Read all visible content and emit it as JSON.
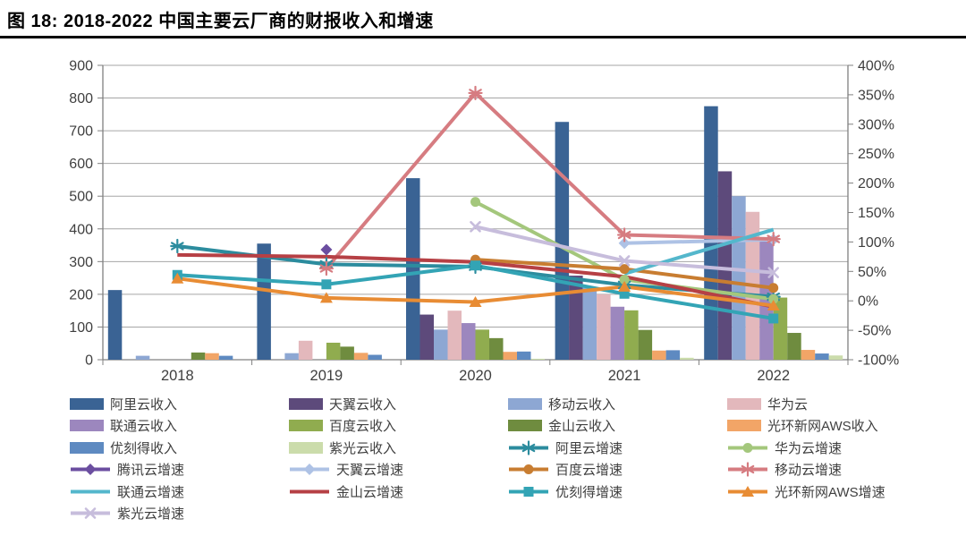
{
  "header": {
    "title": "图 18: 2018-2022 中国主要云厂商的财报收入和增速"
  },
  "colors": {
    "background": "#FFFFFF",
    "title_text": "#000000",
    "axis_text": "#3F3F3F",
    "gridline": "#A6A6A6",
    "axis_line": "#808080",
    "legend_text": "#3F3F3F"
  },
  "chart_data": {
    "type": "bar",
    "subtype": "combo-bar-line-dual-axis",
    "title": "图 18: 2018-2022 中国主要云厂商的财报收入和增速",
    "categories": [
      "2018",
      "2019",
      "2020",
      "2021",
      "2022"
    ],
    "grid": true,
    "legend_position": "bottom",
    "left_axis": {
      "min": 0,
      "max": 900,
      "step": 100,
      "ticks": [
        "0",
        "100",
        "200",
        "300",
        "400",
        "500",
        "600",
        "700",
        "800",
        "900"
      ]
    },
    "right_axis": {
      "min": -100,
      "max": 400,
      "step": 50,
      "format": "percent",
      "ticks": [
        "-100%",
        "-50%",
        "0%",
        "50%",
        "100%",
        "150%",
        "200%",
        "250%",
        "300%",
        "350%",
        "400%"
      ]
    },
    "bar_series": [
      {
        "name": "阿里云收入",
        "color": "#3A6394",
        "values": [
          213,
          355,
          555,
          727,
          775
        ]
      },
      {
        "name": "天翼云收入",
        "color": "#5D4A7B",
        "values": [
          null,
          null,
          138,
          257,
          576
        ]
      },
      {
        "name": "移动云收入",
        "color": "#8DA7D3",
        "values": [
          12,
          20,
          92,
          220,
          500
        ]
      },
      {
        "name": "华为云",
        "color": "#E3B8BC",
        "values": [
          null,
          58,
          150,
          200,
          452
        ]
      },
      {
        "name": "联通云收入",
        "color": "#9C87BE",
        "values": [
          null,
          null,
          112,
          162,
          361
        ]
      },
      {
        "name": "百度云收入",
        "color": "#90AC4F",
        "values": [
          null,
          52,
          92,
          151,
          190
        ]
      },
      {
        "name": "金山云收入",
        "color": "#6F8C3F",
        "values": [
          22,
          40,
          66,
          91,
          82
        ]
      },
      {
        "name": "光环新网AWS收入",
        "color": "#F2A567",
        "values": [
          20,
          21,
          24,
          28,
          30
        ]
      },
      {
        "name": "优刻得收入",
        "color": "#5E8AC1",
        "values": [
          12,
          15,
          25,
          29,
          19
        ]
      },
      {
        "name": "紫光云收入",
        "color": "#CBDCAB",
        "values": [
          null,
          null,
          3,
          6,
          13
        ]
      }
    ],
    "line_series": [
      {
        "name": "阿里云增速",
        "color": "#2C8C9E",
        "marker": "asterisk",
        "values": [
          93,
          62,
          58,
          27,
          7
        ]
      },
      {
        "name": "华为云增速",
        "color": "#A4C77C",
        "marker": "circle",
        "values": [
          null,
          null,
          168,
          36,
          3
        ]
      },
      {
        "name": "腾讯云增速",
        "color": "#6B4EA0",
        "marker": "diamond",
        "values": [
          null,
          87,
          null,
          null,
          null
        ]
      },
      {
        "name": "天翼云增速",
        "color": "#AEC2E5",
        "marker": "diamond",
        "values": [
          null,
          null,
          null,
          98,
          104
        ]
      },
      {
        "name": "百度云增速",
        "color": "#C87D31",
        "marker": "circle",
        "values": [
          null,
          null,
          70,
          54,
          22
        ]
      },
      {
        "name": "移动云增速",
        "color": "#D67C81",
        "marker": "asterisk",
        "values": [
          null,
          55,
          353,
          112,
          105
        ]
      },
      {
        "name": "联通云增速",
        "color": "#54B7CC",
        "marker": "none",
        "values": [
          null,
          null,
          null,
          46,
          121
        ]
      },
      {
        "name": "金山云增速",
        "color": "#B64045",
        "marker": "none",
        "values": [
          78,
          75,
          66,
          41,
          -10
        ]
      },
      {
        "name": "优刻得增速",
        "color": "#33A4B5",
        "marker": "square",
        "values": [
          44,
          28,
          60,
          12,
          -30
        ]
      },
      {
        "name": "光环新网AWS增速",
        "color": "#E88C34",
        "marker": "triangle",
        "values": [
          38,
          5,
          -2,
          24,
          -8
        ]
      },
      {
        "name": "紫光云增速",
        "color": "#C7BDDC",
        "marker": "x",
        "values": [
          null,
          null,
          126,
          68,
          48
        ]
      }
    ]
  }
}
